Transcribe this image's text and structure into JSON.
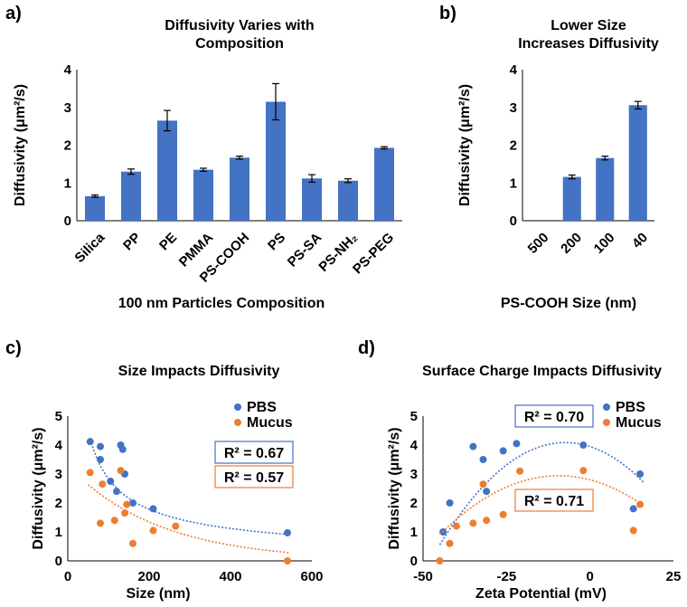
{
  "panels": {
    "a": "a)",
    "b": "b)",
    "c": "c)",
    "d": "d)"
  },
  "colors": {
    "bar": "#4472C4",
    "pbs": "#4472C4",
    "mucus": "#ED7D31"
  },
  "chart_data": [
    {
      "id": "a",
      "type": "bar",
      "title_lines": [
        "Diffusivity Varies with",
        "Composition"
      ],
      "xlabel": "100 nm Particles Composition",
      "ylabel": "Diffusivity (μm²/s)",
      "ylim": [
        0,
        4
      ],
      "yticks": [
        0,
        1,
        2,
        3,
        4
      ],
      "categories": [
        "Silica",
        "PP",
        "PE",
        "PMMA",
        "PS-COOH",
        "PS",
        "PS-SA",
        "PS-NH₂",
        "PS-PEG"
      ],
      "values": [
        0.65,
        1.3,
        2.65,
        1.35,
        1.67,
        3.15,
        1.12,
        1.06,
        1.93
      ],
      "errors": [
        0.03,
        0.07,
        0.27,
        0.04,
        0.04,
        0.48,
        0.1,
        0.05,
        0.03
      ]
    },
    {
      "id": "b",
      "type": "bar",
      "title_lines": [
        "Lower Size",
        "Increases Diffusivity"
      ],
      "xlabel": "PS-COOH Size (nm)",
      "ylabel": "Diffusivity (μm²/s)",
      "ylim": [
        0,
        4
      ],
      "yticks": [
        0,
        1,
        2,
        3,
        4
      ],
      "categories": [
        "500",
        "200",
        "100",
        "40"
      ],
      "values": [
        0,
        1.16,
        1.66,
        3.06
      ],
      "errors": [
        0,
        0.05,
        0.05,
        0.1
      ]
    },
    {
      "id": "c",
      "type": "scatter",
      "title": "Size Impacts Diffusivity",
      "xlabel": "Size (nm)",
      "ylabel": "Diffusivity (μm²/s)",
      "xlim": [
        0,
        600
      ],
      "ylim": [
        0,
        5
      ],
      "xticks": [
        0,
        200,
        400,
        600
      ],
      "yticks": [
        0,
        1,
        2,
        3,
        4,
        5
      ],
      "legend": [
        "PBS",
        "Mucus"
      ],
      "r2": [
        "R² = 0.67",
        "R² = 0.57"
      ],
      "series": [
        {
          "name": "PBS",
          "points": [
            [
              55,
              4.12
            ],
            [
              80,
              3.95
            ],
            [
              80,
              3.5
            ],
            [
              105,
              2.75
            ],
            [
              120,
              2.4
            ],
            [
              130,
              4.0
            ],
            [
              135,
              3.85
            ],
            [
              140,
              3.0
            ],
            [
              160,
              2.0
            ],
            [
              210,
              1.8
            ],
            [
              540,
              0.97
            ]
          ],
          "trend": {
            "type": "power",
            "a": 62,
            "b": -0.67
          }
        },
        {
          "name": "Mucus",
          "points": [
            [
              55,
              3.05
            ],
            [
              80,
              1.3
            ],
            [
              85,
              2.65
            ],
            [
              115,
              1.4
            ],
            [
              130,
              3.12
            ],
            [
              140,
              1.65
            ],
            [
              145,
              1.95
            ],
            [
              160,
              0.6
            ],
            [
              210,
              1.05
            ],
            [
              265,
              1.2
            ],
            [
              540,
              0.0
            ]
          ],
          "trend": {
            "type": "exp",
            "a": 3.3,
            "b": -0.0045
          }
        }
      ]
    },
    {
      "id": "d",
      "type": "scatter",
      "title": "Surface Charge Impacts Diffusivity",
      "xlabel": "Zeta Potential (mV)",
      "ylabel": "Diffusivity (μm²/s)",
      "xlim": [
        -50,
        25
      ],
      "ylim": [
        0,
        5
      ],
      "xticks": [
        -50,
        -25,
        0,
        25
      ],
      "yticks": [
        0,
        1,
        2,
        3,
        4,
        5
      ],
      "legend": [
        "PBS",
        "Mucus"
      ],
      "r2": [
        "R² = 0.70",
        "R² = 0.71"
      ],
      "series": [
        {
          "name": "PBS",
          "points": [
            [
              -44,
              1.0
            ],
            [
              -42,
              2.0
            ],
            [
              -35,
              3.95
            ],
            [
              -32,
              3.5
            ],
            [
              -31,
              2.4
            ],
            [
              -26,
              3.8
            ],
            [
              -22,
              4.05
            ],
            [
              -2,
              4.0
            ],
            [
              13,
              1.8
            ],
            [
              15,
              3.0
            ]
          ],
          "trend": {
            "type": "poly2",
            "c": [
              3.95,
              -0.037,
              -0.0025
            ]
          }
        },
        {
          "name": "Mucus",
          "points": [
            [
              -45,
              0.0
            ],
            [
              -42,
              0.6
            ],
            [
              -40,
              1.2
            ],
            [
              -35,
              1.3
            ],
            [
              -32,
              2.65
            ],
            [
              -31,
              1.4
            ],
            [
              -26,
              1.6
            ],
            [
              -21,
              3.1
            ],
            [
              -2,
              3.12
            ],
            [
              13,
              1.05
            ],
            [
              15,
              1.95
            ]
          ],
          "trend": {
            "type": "poly2",
            "c": [
              2.8,
              -0.03,
              -0.0016
            ]
          }
        }
      ]
    }
  ]
}
